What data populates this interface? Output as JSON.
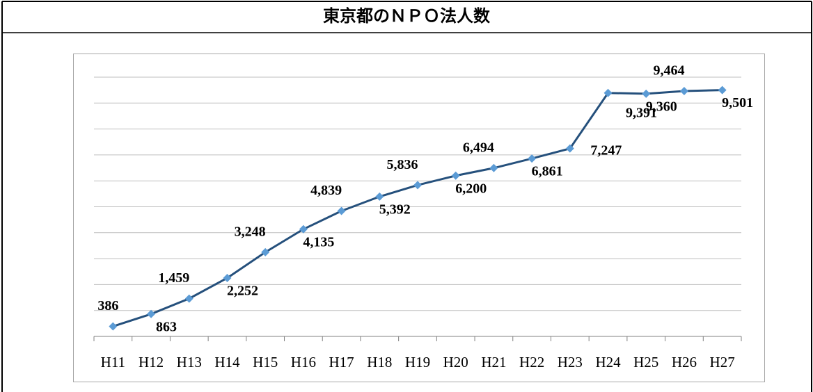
{
  "chart_data": {
    "type": "line",
    "title": "東京都のＮＰＯ法人数",
    "categories": [
      "H11",
      "H12",
      "H13",
      "H14",
      "H15",
      "H16",
      "H17",
      "H18",
      "H19",
      "H20",
      "H21",
      "H22",
      "H23",
      "H24",
      "H25",
      "H26",
      "H27"
    ],
    "values": [
      386,
      863,
      1459,
      2252,
      3248,
      4135,
      4839,
      5392,
      5836,
      6200,
      6494,
      6861,
      7247,
      9391,
      9360,
      9464,
      9501
    ],
    "value_labels": [
      "386",
      "863",
      "1,459",
      "2,252",
      "3,248",
      "4,135",
      "4,839",
      "5,392",
      "5,836",
      "6,200",
      "6,494",
      "6,861",
      "7,247",
      "9,391",
      "9,360",
      "9,464",
      "9,501"
    ],
    "color": "#25507c",
    "marker_color": "#5b9bd5",
    "ylim": [
      0,
      10000
    ],
    "yticks": [
      0,
      1000,
      2000,
      3000,
      4000,
      5000,
      6000,
      7000,
      8000,
      9000,
      10000
    ],
    "grid": true
  }
}
